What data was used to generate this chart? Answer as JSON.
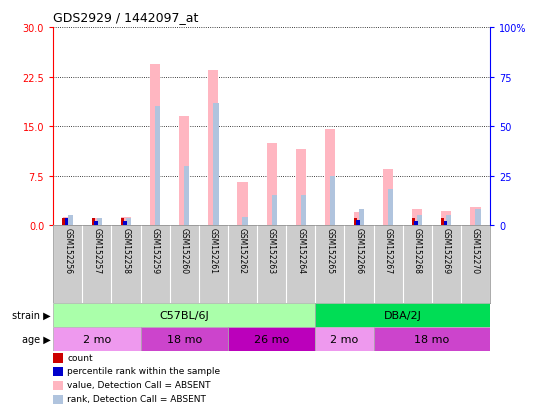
{
  "title": "GDS2929 / 1442097_at",
  "samples": [
    "GSM152256",
    "GSM152257",
    "GSM152258",
    "GSM152259",
    "GSM152260",
    "GSM152261",
    "GSM152262",
    "GSM152263",
    "GSM152264",
    "GSM152265",
    "GSM152266",
    "GSM152267",
    "GSM152268",
    "GSM152269",
    "GSM152270"
  ],
  "value_absent": [
    1.2,
    1.1,
    1.2,
    24.5,
    16.5,
    23.5,
    6.5,
    12.5,
    11.5,
    14.5,
    2.0,
    8.5,
    2.5,
    2.2,
    2.8
  ],
  "rank_absent_pct": [
    5.0,
    3.5,
    3.5,
    60.0,
    30.0,
    61.5,
    4.0,
    15.0,
    15.0,
    25.0,
    8.0,
    18.0,
    5.0,
    5.0,
    8.0
  ],
  "count_val": [
    1.0,
    1.0,
    1.0,
    0,
    0,
    0,
    0,
    0,
    0,
    0,
    1.0,
    0,
    1.0,
    1.0,
    0
  ],
  "percentile_rank_pct": [
    3.5,
    2.0,
    2.0,
    0,
    0,
    0,
    0,
    0,
    0,
    0,
    2.5,
    0,
    2.0,
    2.0,
    0
  ],
  "ylim_left": [
    0,
    30
  ],
  "ylim_right": [
    0,
    100
  ],
  "yticks_left": [
    0,
    7.5,
    15,
    22.5,
    30
  ],
  "yticks_right": [
    0,
    25,
    50,
    75,
    100
  ],
  "strain_groups": [
    {
      "label": "C57BL/6J",
      "start": 0,
      "end": 9,
      "color": "#aaffaa"
    },
    {
      "label": "DBA/2J",
      "start": 9,
      "end": 15,
      "color": "#00dd55"
    }
  ],
  "age_groups": [
    {
      "label": "2 mo",
      "start": 0,
      "end": 3,
      "color": "#ee99ee"
    },
    {
      "label": "18 mo",
      "start": 3,
      "end": 6,
      "color": "#cc44cc"
    },
    {
      "label": "26 mo",
      "start": 6,
      "end": 9,
      "color": "#bb00bb"
    },
    {
      "label": "2 mo",
      "start": 9,
      "end": 11,
      "color": "#ee99ee"
    },
    {
      "label": "18 mo",
      "start": 11,
      "end": 15,
      "color": "#cc44cc"
    }
  ],
  "color_count": "#cc0000",
  "color_percentile": "#0000cc",
  "color_value_absent": "#ffb6c1",
  "color_rank_absent": "#b0c4de",
  "grid_color": "black",
  "grid_linestyle": "dotted",
  "background_color": "#ffffff"
}
